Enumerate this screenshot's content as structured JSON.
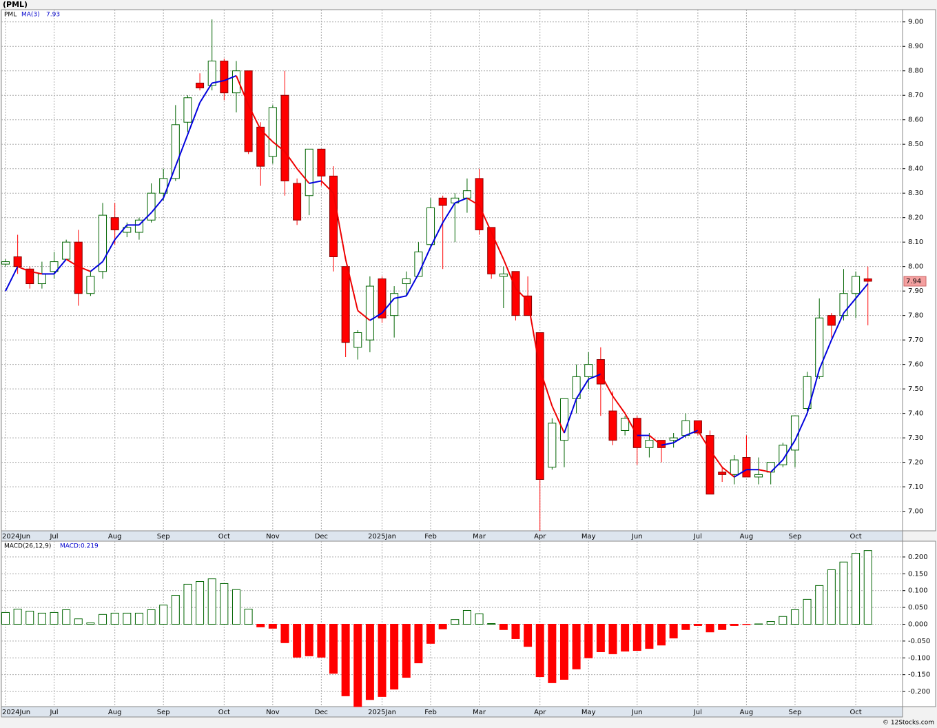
{
  "chart_data": [
    {
      "type": "candlestick",
      "title": "(PML)",
      "symbol": "PML",
      "categories": [
        "2024Jun",
        null,
        null,
        null,
        "Jul",
        null,
        null,
        null,
        null,
        "Aug",
        null,
        null,
        null,
        "Sep",
        null,
        null,
        null,
        null,
        "Oct",
        null,
        null,
        null,
        "Nov",
        null,
        null,
        null,
        "Dec",
        null,
        null,
        null,
        null,
        "2025Jan",
        null,
        null,
        null,
        "Feb",
        null,
        null,
        null,
        "Mar",
        null,
        null,
        null,
        null,
        "Apr",
        null,
        null,
        null,
        "May",
        null,
        null,
        null,
        "Jun",
        null,
        null,
        null,
        null,
        "Jul",
        null,
        null,
        null,
        "Aug",
        null,
        null,
        null,
        "Sep",
        null,
        null,
        null,
        null,
        "Oct",
        null
      ],
      "open": [
        8.01,
        8.04,
        7.99,
        7.93,
        7.98,
        8.03,
        8.1,
        7.89,
        7.98,
        8.2,
        8.14,
        8.14,
        8.19,
        8.3,
        8.36,
        8.59,
        8.75,
        8.74,
        8.84,
        8.71,
        8.8,
        8.57,
        8.45,
        8.7,
        8.34,
        8.29,
        8.48,
        8.37,
        8.0,
        7.67,
        7.7,
        7.95,
        7.8,
        7.93,
        7.96,
        8.09,
        8.28,
        8.26,
        8.28,
        8.36,
        8.16,
        7.96,
        7.98,
        7.88,
        7.73,
        7.18,
        7.29,
        7.46,
        7.55,
        7.62,
        7.41,
        7.33,
        7.38,
        7.26,
        7.29,
        7.29,
        7.31,
        7.37,
        7.31,
        7.16,
        7.15,
        7.22,
        7.14,
        7.16,
        7.19,
        7.25,
        7.42,
        7.55,
        7.8,
        7.8,
        7.89,
        7.95
      ],
      "high": [
        8.03,
        8.13,
        8.0,
        8.02,
        8.06,
        8.11,
        8.15,
        7.98,
        8.26,
        8.26,
        8.18,
        8.2,
        8.34,
        8.4,
        8.66,
        8.7,
        8.79,
        9.01,
        8.85,
        8.84,
        8.8,
        8.59,
        8.66,
        8.8,
        8.36,
        8.48,
        8.48,
        8.41,
        8.0,
        7.74,
        7.96,
        7.96,
        7.92,
        7.98,
        8.1,
        8.28,
        8.29,
        8.3,
        8.36,
        8.4,
        8.16,
        8.0,
        7.98,
        7.96,
        7.73,
        7.38,
        7.46,
        7.6,
        7.65,
        7.67,
        7.49,
        7.39,
        7.39,
        7.32,
        7.29,
        7.32,
        7.4,
        7.37,
        7.33,
        7.18,
        7.23,
        7.31,
        7.22,
        7.2,
        7.28,
        7.39,
        7.57,
        7.87,
        7.81,
        7.99,
        7.98,
        8.0
      ],
      "low": [
        8.0,
        7.97,
        7.91,
        7.91,
        7.95,
        8.03,
        7.84,
        7.88,
        7.95,
        8.09,
        8.12,
        8.11,
        8.18,
        8.27,
        8.35,
        8.55,
        8.72,
        8.72,
        8.68,
        8.63,
        8.46,
        8.33,
        8.42,
        8.29,
        8.17,
        8.21,
        8.33,
        7.98,
        7.63,
        7.62,
        7.65,
        7.77,
        7.71,
        7.88,
        7.96,
        8.08,
        7.99,
        8.1,
        8.22,
        8.13,
        7.95,
        7.83,
        7.78,
        7.8,
        6.92,
        7.17,
        7.18,
        7.4,
        7.5,
        7.39,
        7.27,
        7.31,
        7.19,
        7.22,
        7.2,
        7.26,
        7.3,
        7.31,
        7.07,
        7.12,
        7.11,
        7.14,
        7.11,
        7.11,
        7.18,
        7.18,
        7.41,
        7.54,
        7.71,
        7.78,
        7.79,
        7.76
      ],
      "close": [
        8.02,
        8.0,
        7.93,
        7.97,
        8.02,
        8.1,
        7.89,
        7.96,
        8.21,
        8.15,
        8.16,
        8.19,
        8.3,
        8.36,
        8.58,
        8.69,
        8.73,
        8.84,
        8.71,
        8.8,
        8.47,
        8.41,
        8.65,
        8.35,
        8.19,
        8.48,
        8.37,
        8.04,
        7.69,
        7.73,
        7.92,
        7.79,
        7.89,
        7.95,
        8.06,
        8.24,
        8.25,
        8.28,
        8.31,
        8.15,
        7.97,
        7.97,
        7.8,
        7.8,
        7.13,
        7.36,
        7.46,
        7.55,
        7.6,
        7.52,
        7.29,
        7.38,
        7.26,
        7.29,
        7.26,
        7.3,
        7.37,
        7.32,
        7.07,
        7.15,
        7.21,
        7.14,
        7.15,
        7.2,
        7.27,
        7.39,
        7.55,
        7.79,
        7.76,
        7.89,
        7.96,
        7.94
      ],
      "up_color": "#006400",
      "down_color": "#ff0000",
      "ma": {
        "name": "MA(3)",
        "up_color": "#0000dd",
        "down_color": "#ee0000",
        "values": [
          7.9,
          8.0,
          7.98,
          7.97,
          7.97,
          8.03,
          8.0,
          7.98,
          8.02,
          8.11,
          8.17,
          8.17,
          8.22,
          8.28,
          8.41,
          8.54,
          8.67,
          8.75,
          8.76,
          8.78,
          8.66,
          8.56,
          8.51,
          8.47,
          8.4,
          8.34,
          8.35,
          8.3,
          8.03,
          7.82,
          7.78,
          7.81,
          7.87,
          7.88,
          7.97,
          8.08,
          8.18,
          8.26,
          8.28,
          8.25,
          8.14,
          8.03,
          7.91,
          7.86,
          7.58,
          7.43,
          7.32,
          7.46,
          7.54,
          7.56,
          7.47,
          7.4,
          7.31,
          7.31,
          7.27,
          7.28,
          7.31,
          7.33,
          7.25,
          7.18,
          7.14,
          7.17,
          7.17,
          7.16,
          7.21,
          7.29,
          7.4,
          7.58,
          7.7,
          7.81,
          7.87,
          7.93
        ]
      },
      "ylim": [
        6.92,
        9.05
      ],
      "yticks": [
        {
          "value": 7,
          "label": "7.00"
        },
        {
          "value": 7.1,
          "label": "7.10"
        },
        {
          "value": 7.2,
          "label": "7.20"
        },
        {
          "value": 7.3,
          "label": "7.30"
        },
        {
          "value": 7.4,
          "label": "7.40"
        },
        {
          "value": 7.5,
          "label": "7.50"
        },
        {
          "value": 7.6,
          "label": "7.60"
        },
        {
          "value": 7.7,
          "label": "7.70"
        },
        {
          "value": 7.8,
          "label": "7.80"
        },
        {
          "value": 7.9,
          "label": "7.90"
        },
        {
          "value": 8,
          "label": "8.00"
        },
        {
          "value": 8.1,
          "label": "8.10"
        },
        {
          "value": 8.2,
          "label": "8.20"
        },
        {
          "value": 8.3,
          "label": "8.30"
        },
        {
          "value": 8.4,
          "label": "8.40"
        },
        {
          "value": 8.5,
          "label": "8.50"
        },
        {
          "value": 8.6,
          "label": "8.60"
        },
        {
          "value": 8.7,
          "label": "8.70"
        },
        {
          "value": 8.8,
          "label": "8.80"
        },
        {
          "value": 8.9,
          "label": "8.90"
        },
        {
          "value": 9,
          "label": "9.00"
        }
      ],
      "grid": true
    },
    {
      "type": "bar",
      "title": "MACD(26,12,9)",
      "current_label": "MACD:0.219",
      "positive_color": "#006400",
      "negative_color": "#ff0000",
      "values": [
        0.035,
        0.045,
        0.039,
        0.033,
        0.035,
        0.043,
        0.016,
        0.004,
        0.029,
        0.033,
        0.033,
        0.033,
        0.043,
        0.057,
        0.086,
        0.119,
        0.127,
        0.135,
        0.121,
        0.103,
        0.045,
        -0.008,
        -0.012,
        -0.055,
        -0.098,
        -0.094,
        -0.098,
        -0.146,
        -0.213,
        -0.245,
        -0.224,
        -0.215,
        -0.193,
        -0.158,
        -0.115,
        -0.057,
        -0.014,
        0.014,
        0.041,
        0.031,
        0.002,
        -0.016,
        -0.043,
        -0.066,
        -0.156,
        -0.174,
        -0.164,
        -0.133,
        -0.1,
        -0.082,
        -0.088,
        -0.08,
        -0.078,
        -0.072,
        -0.062,
        -0.041,
        -0.016,
        -0.004,
        -0.023,
        -0.016,
        -0.004,
        -0.001,
        0.001,
        0.008,
        0.023,
        0.043,
        0.074,
        0.115,
        0.162,
        0.185,
        0.211,
        0.219
      ],
      "ylim": [
        -0.245,
        0.247
      ],
      "yticks": [
        {
          "value": -0.2,
          "label": "-0.200"
        },
        {
          "value": -0.15,
          "label": "-0.150"
        },
        {
          "value": -0.1,
          "label": "-0.100"
        },
        {
          "value": -0.05,
          "label": "-0.050"
        },
        {
          "value": 0,
          "label": "0.000"
        },
        {
          "value": 0.05,
          "label": "0.050"
        },
        {
          "value": 0.1,
          "label": "0.100"
        },
        {
          "value": 0.15,
          "label": "0.150"
        },
        {
          "value": 0.2,
          "label": "0.200"
        }
      ],
      "grid": true
    }
  ],
  "footer": "© 12Stocks.com"
}
